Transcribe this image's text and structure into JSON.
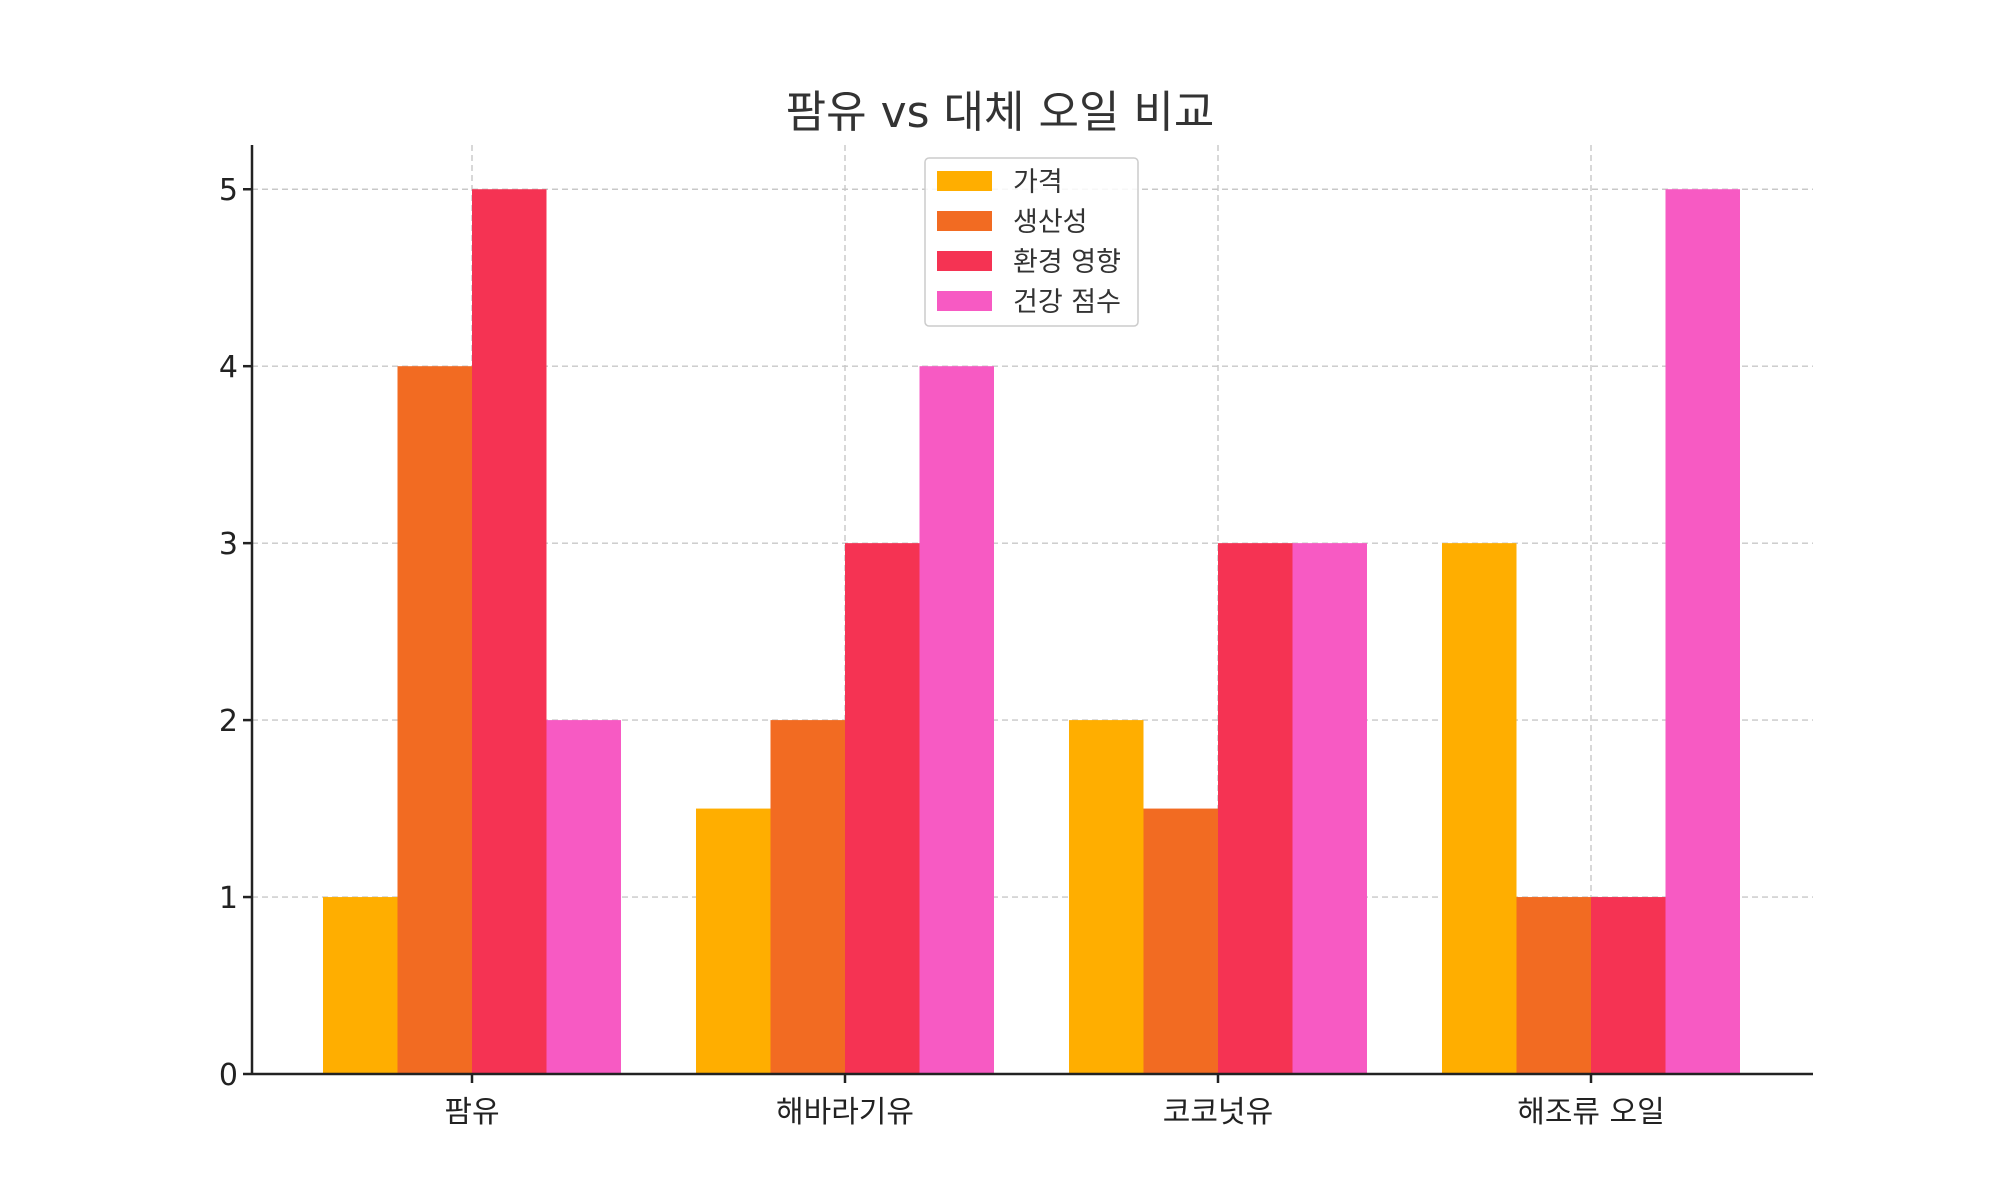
{
  "chart_data": {
    "type": "bar",
    "title": "팜유 vs 대체 오일 비교",
    "xlabel": "",
    "ylabel": "",
    "categories": [
      "팜유",
      "해바라기유",
      "코코넛유",
      "해조류 오일"
    ],
    "series": [
      {
        "name": "가격",
        "color": "#ffae00",
        "values": [
          1,
          1.5,
          2,
          3
        ]
      },
      {
        "name": "생산성",
        "color": "#f26b22",
        "values": [
          4,
          2,
          1.5,
          1
        ]
      },
      {
        "name": "환경 영향",
        "color": "#f53353",
        "values": [
          5,
          3,
          3,
          1
        ]
      },
      {
        "name": "건강 점수",
        "color": "#f75ac3",
        "values": [
          2,
          4,
          3,
          5
        ]
      }
    ],
    "ylim": [
      0,
      5.25
    ],
    "yticks": [
      "0",
      "1",
      "2",
      "3",
      "4",
      "5"
    ],
    "grid": true,
    "legend_position": "top-center"
  }
}
